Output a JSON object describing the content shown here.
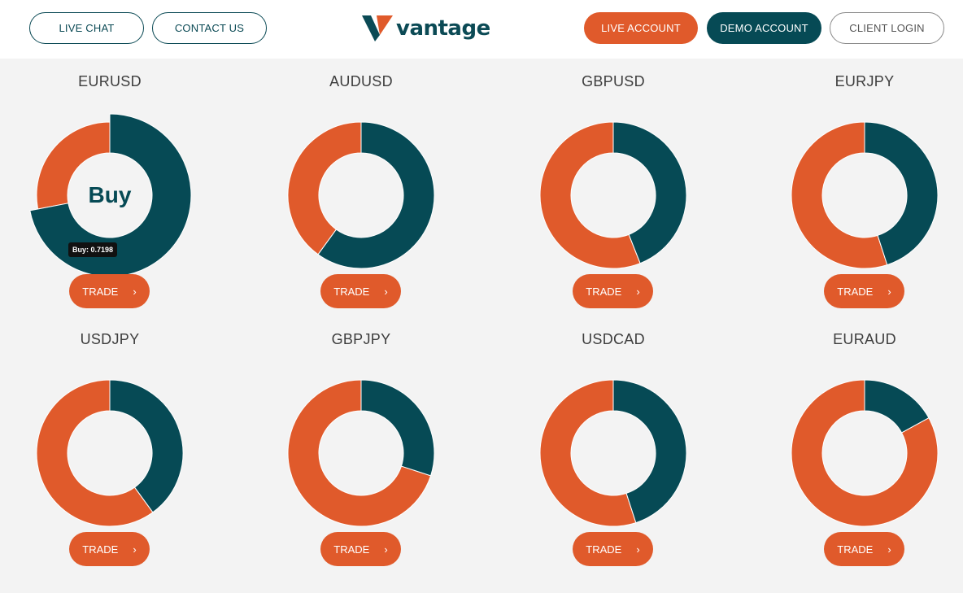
{
  "header": {
    "live_chat": "LIVE CHAT",
    "contact_us": "CONTACT US",
    "logo_text": "vantage",
    "live_account": "LIVE ACCOUNT",
    "demo_account": "DEMO ACCOUNT",
    "client_login": "CLIENT LOGIN"
  },
  "colors": {
    "sell": "#e05a2b",
    "buy": "#064a55",
    "background": "#f3f3f3"
  },
  "trade_label": "TRADE",
  "trade_icon": "chevron-right-icon",
  "hover_label": "Buy",
  "tooltip": "Buy: 0.7198",
  "pairs": [
    {
      "name": "EURUSD",
      "buy": 0.7198,
      "highlight": true
    },
    {
      "name": "AUDUSD",
      "buy": 0.6
    },
    {
      "name": "GBPUSD",
      "buy": 0.44
    },
    {
      "name": "EURJPY",
      "buy": 0.45
    },
    {
      "name": "USDJPY",
      "buy": 0.4
    },
    {
      "name": "GBPJPY",
      "buy": 0.3
    },
    {
      "name": "USDCAD",
      "buy": 0.45
    },
    {
      "name": "EURAUD",
      "buy": 0.17
    }
  ]
}
